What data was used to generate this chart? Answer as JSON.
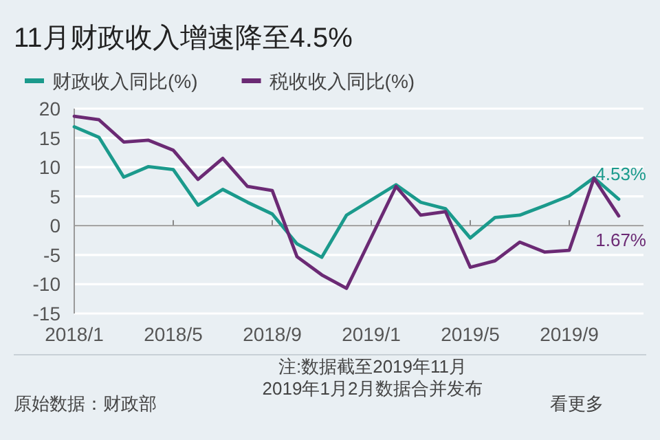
{
  "chart_data": {
    "type": "line",
    "title": "11月财政收入增速降至4.5%",
    "x": [
      "2018-01",
      "2018-02",
      "2018-03",
      "2018-04",
      "2018-05",
      "2018-06",
      "2018-07",
      "2018-08",
      "2018-09",
      "2018-10",
      "2018-11",
      "2018-12",
      "2019-02",
      "2019-03",
      "2019-04",
      "2019-05",
      "2019-06",
      "2019-07",
      "2019-08",
      "2019-09",
      "2019-10",
      "2019-11"
    ],
    "series": [
      {
        "name": "财政收入同比(%)",
        "color": "#1b9a8c",
        "values": [
          16.9,
          15.1,
          8.3,
          10.1,
          9.6,
          3.5,
          6.2,
          4.0,
          2.0,
          -3.1,
          -5.4,
          1.8,
          7.0,
          4.0,
          2.9,
          -2.1,
          1.4,
          1.8,
          3.4,
          5.1,
          8.2,
          4.53
        ],
        "value_labels": [
          null,
          null,
          null,
          null,
          null,
          null,
          null,
          null,
          null,
          null,
          null,
          null,
          null,
          null,
          null,
          null,
          null,
          null,
          null,
          null,
          null,
          "4.53%"
        ]
      },
      {
        "name": "税收收入同比(%)",
        "color": "#6b2a74",
        "values": [
          18.7,
          18.1,
          14.3,
          14.6,
          12.9,
          7.9,
          11.5,
          6.7,
          6.0,
          -5.3,
          -8.4,
          -10.7,
          6.7,
          1.8,
          2.4,
          -7.1,
          -6.0,
          -2.8,
          -4.5,
          -4.2,
          8.1,
          1.67
        ],
        "value_labels": [
          null,
          null,
          null,
          null,
          null,
          null,
          null,
          null,
          null,
          null,
          null,
          null,
          null,
          null,
          null,
          null,
          null,
          null,
          null,
          null,
          null,
          "1.67%"
        ]
      }
    ],
    "xlim": [
      "2018-01",
      "2019-12"
    ],
    "xticks": [
      {
        "value": "2018-01",
        "label": "2018/1"
      },
      {
        "value": "2018-05",
        "label": "2018/5"
      },
      {
        "value": "2018-09",
        "label": "2018/9"
      },
      {
        "value": "2019-01",
        "label": "2019/1"
      },
      {
        "value": "2019-05",
        "label": "2019/5"
      },
      {
        "value": "2019-09",
        "label": "2019/9"
      }
    ],
    "ylim": [
      -15,
      20
    ],
    "yticks": [
      -15,
      -10,
      -5,
      0,
      5,
      10,
      15,
      20
    ],
    "grid": "y",
    "legend": "top",
    "annotations": [
      "注:数据截至2019年11月",
      "2019年1月2月数据合并发布",
      "原始数据：财政部",
      "看更多"
    ]
  }
}
